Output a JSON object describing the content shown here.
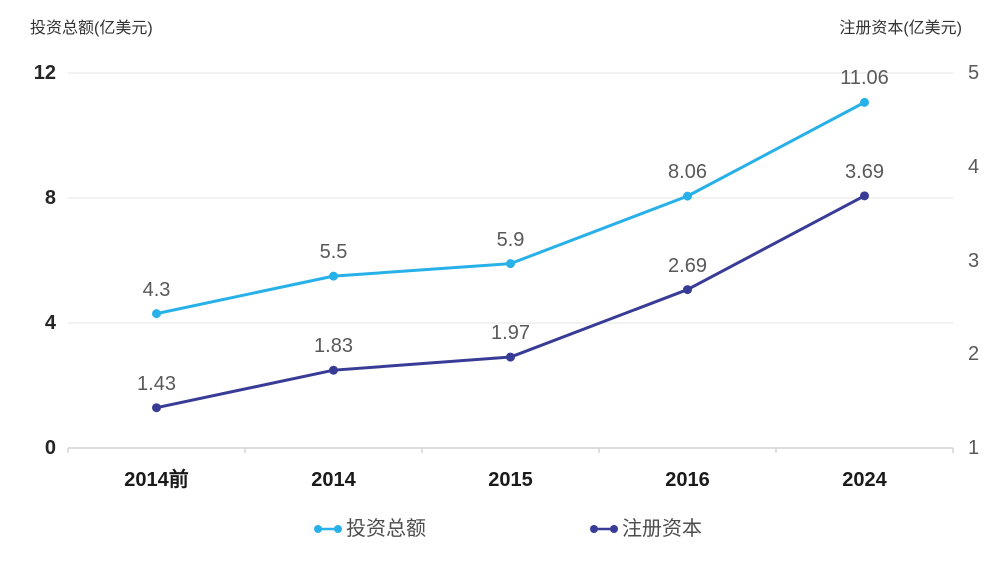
{
  "titles": {
    "left_axis_title": "投资总额(亿美元)",
    "right_axis_title": "注册资本(亿美元)"
  },
  "colors": {
    "series_investment": "#28b0e8",
    "series_capital": "#383c96",
    "grid": "#e6e6e6",
    "axis": "#d4d4d4",
    "data_label": "#595959",
    "x_label": "#1a1a1a"
  },
  "chart_data": {
    "type": "line",
    "categories": [
      "2014前",
      "2014",
      "2015",
      "2016",
      "2024"
    ],
    "series": [
      {
        "name": "投资总额",
        "axis": "left",
        "color": "#28b0e8",
        "values": [
          4.3,
          5.5,
          5.9,
          8.06,
          11.06
        ],
        "labels": [
          "4.3",
          "5.5",
          "5.9",
          "8.06",
          "11.06"
        ]
      },
      {
        "name": "注册资本",
        "axis": "right",
        "color": "#383c96",
        "values": [
          1.43,
          1.83,
          1.97,
          2.69,
          3.69
        ],
        "labels": [
          "1.43",
          "1.83",
          "1.97",
          "2.69",
          "3.69"
        ]
      }
    ],
    "left_axis": {
      "title": "投资总额(亿美元)",
      "min": 0,
      "max": 12,
      "ticks": [
        0,
        4,
        8,
        12
      ]
    },
    "right_axis": {
      "title": "注册资本(亿美元)",
      "min": 1,
      "max": 5,
      "ticks": [
        1,
        2,
        3,
        4,
        5
      ]
    },
    "grid": true,
    "legend_position": "bottom",
    "legend": [
      {
        "label": "投资总额",
        "color": "#28b0e8"
      },
      {
        "label": "注册资本",
        "color": "#383c96"
      }
    ]
  }
}
